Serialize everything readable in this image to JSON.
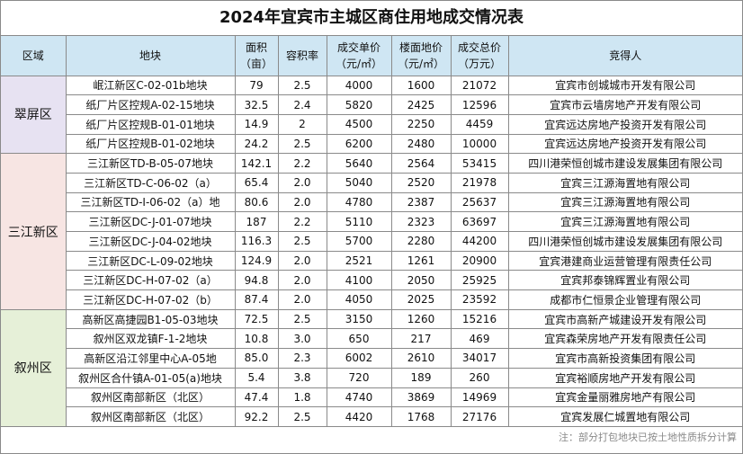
{
  "title": "2024年宜宾市主城区商住用地成交情况表",
  "headers": {
    "region": "区域",
    "block": "地块",
    "area_l1": "面积",
    "area_l2": "（亩）",
    "far": "容积率",
    "unit_price_l1": "成交单价",
    "unit_price_l2": "（元/㎡）",
    "floor_price_l1": "楼面地价",
    "floor_price_l2": "（元/㎡）",
    "total_l1": "成交总价",
    "total_l2": "（万元）",
    "winner": "竞得人"
  },
  "regions": [
    {
      "name": "翠屏区",
      "rows": [
        {
          "block": "岷江新区C-02-01b地块",
          "area": "79",
          "far": "2.5",
          "unit": "4000",
          "floor": "1600",
          "total": "21072",
          "winner": "宜宾市创城城市开发有限公司"
        },
        {
          "block": "纸厂片区控规A-02-15地块",
          "area": "32.5",
          "far": "2.4",
          "unit": "5820",
          "floor": "2425",
          "total": "12596",
          "winner": "宜宾市云墙房地产开发有限公司"
        },
        {
          "block": "纸厂片区控规B-01-01地块",
          "area": "14.9",
          "far": "2",
          "unit": "4500",
          "floor": "2250",
          "total": "4459",
          "winner": "宜宾远达房地产投资开发有限公司"
        },
        {
          "block": "纸厂片区控规B-01-02地块",
          "area": "24.2",
          "far": "2.5",
          "unit": "6200",
          "floor": "2480",
          "total": "10000",
          "winner": "宜宾远达房地产投资开发有限公司"
        }
      ]
    },
    {
      "name": "三江新区",
      "rows": [
        {
          "block": "三江新区TD-B-05-07地块",
          "area": "142.1",
          "far": "2.2",
          "unit": "5640",
          "floor": "2564",
          "total": "53415",
          "winner": "四川港荣恒创城市建设发展集团有限公司"
        },
        {
          "block": "三江新区TD-C-06-02（a）",
          "area": "65.4",
          "far": "2.0",
          "unit": "5040",
          "floor": "2520",
          "total": "21978",
          "winner": "宜宾三江源海置地有限公司"
        },
        {
          "block": "三江新区TD-I-06-02（a）地",
          "area": "80.6",
          "far": "2.0",
          "unit": "4780",
          "floor": "2387",
          "total": "25637",
          "winner": "宜宾三江源海置地有限公司"
        },
        {
          "block": "三江新区DC-J-01-07地块",
          "area": "187",
          "far": "2.2",
          "unit": "5110",
          "floor": "2323",
          "total": "63697",
          "winner": "宜宾三江源海置地有限公司"
        },
        {
          "block": "三江新区DC-J-04-02地块",
          "area": "116.3",
          "far": "2.5",
          "unit": "5700",
          "floor": "2280",
          "total": "44200",
          "winner": "四川港荣恒创城市建设发展集团有限公司"
        },
        {
          "block": "三江新区DC-L-09-02地块",
          "area": "124.9",
          "far": "2.0",
          "unit": "2521",
          "floor": "1261",
          "total": "20900",
          "winner": "宜宾港建商业运营管理有限责任公司"
        },
        {
          "block": "三江新区DC-H-07-02（a）",
          "area": "94.8",
          "far": "2.0",
          "unit": "4100",
          "floor": "2050",
          "total": "25925",
          "winner": "宜宾邦泰锦辉置业有限公司"
        },
        {
          "block": "三江新区DC-H-07-02（b）",
          "area": "87.4",
          "far": "2.0",
          "unit": "4050",
          "floor": "2025",
          "total": "23592",
          "winner": "成都市仁恒景企业管理有限公司"
        }
      ]
    },
    {
      "name": "叙州区",
      "rows": [
        {
          "block": "高新区高捷园B1-05-03地块",
          "area": "72.5",
          "far": "2.5",
          "unit": "3150",
          "floor": "1260",
          "total": "15216",
          "winner": "宜宾市高新产城建设开发有限公司"
        },
        {
          "block": "叙州区双龙镇F-1-2地块",
          "area": "10.8",
          "far": "3.0",
          "unit": "650",
          "floor": "217",
          "total": "469",
          "winner": "宜宾森荣房地产开发有限责任公司"
        },
        {
          "block": "高新区沿江邻里中心A-05地",
          "area": "85.0",
          "far": "2.3",
          "unit": "6002",
          "floor": "2610",
          "total": "34017",
          "winner": "宜宾市高新投资集团有限公司"
        },
        {
          "block": "叙州区合什镇A-01-05(a)地块",
          "area": "5.4",
          "far": "3.8",
          "unit": "720",
          "floor": "189",
          "total": "260",
          "winner": "宜宾裕顺房地产开发有限公司"
        },
        {
          "block": "叙州区南部新区（北区）",
          "area": "47.4",
          "far": "1.8",
          "unit": "4740",
          "floor": "3869",
          "total": "14969",
          "winner": "宜宾金量丽雅房地产有限公司"
        },
        {
          "block": "叙州区南部新区（北区）",
          "area": "92.2",
          "far": "2.5",
          "unit": "4420",
          "floor": "1768",
          "total": "27176",
          "winner": "宜宾发展仁城置地有限公司"
        }
      ]
    }
  ],
  "note": "注：部分打包地块已按土地性质拆分计算",
  "colors": {
    "header_bg": "#cfe6f3",
    "cuiping_bg": "#e7e2f2",
    "sanjiang_bg": "#f7e5e3",
    "xuzhou_bg": "#e6f0d8"
  }
}
